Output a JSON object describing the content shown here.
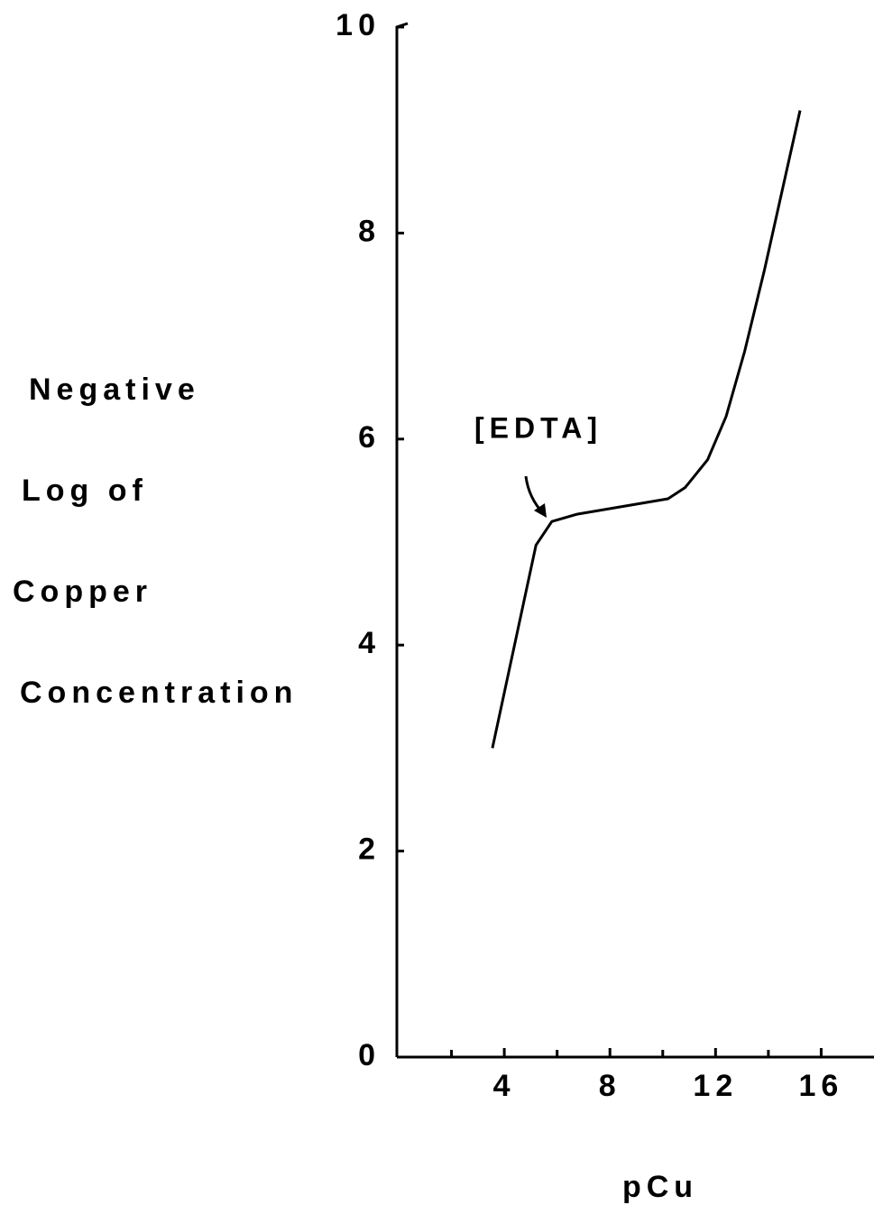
{
  "chart_data": {
    "type": "line",
    "x": [
      3.55,
      5.2,
      5.8,
      6.75,
      10.2,
      10.85,
      11.7,
      12.4,
      13.1,
      13.85,
      15.2
    ],
    "values": [
      3.0,
      4.97,
      5.2,
      5.27,
      5.42,
      5.53,
      5.8,
      6.22,
      6.85,
      7.64,
      9.19
    ],
    "color": "#000000",
    "xlim": [
      0,
      18
    ],
    "xticks": [
      4,
      8,
      12,
      16
    ],
    "minor_xticks": [
      2,
      6,
      10,
      14
    ],
    "ylim": [
      0,
      10
    ],
    "yticks": [
      0,
      2,
      4,
      6,
      8,
      10
    ],
    "xlabel": "pCu",
    "ylabel": [
      "Negative",
      "Log   of",
      "Copper",
      "Concentration"
    ],
    "annotation": "[EDTA]"
  }
}
